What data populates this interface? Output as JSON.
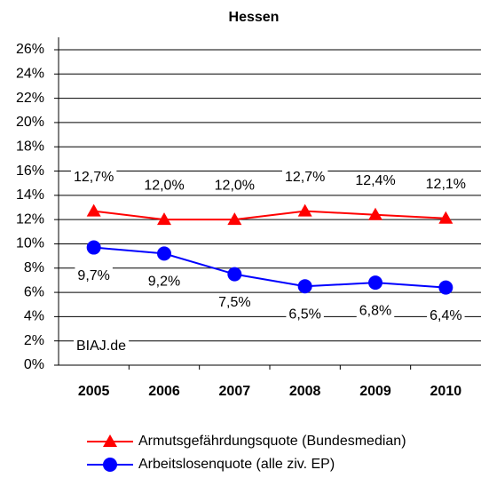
{
  "chart_data": {
    "type": "line",
    "title": "Hessen",
    "categories": [
      "2005",
      "2006",
      "2007",
      "2008",
      "2009",
      "2010"
    ],
    "series": [
      {
        "name": "Armutsgefährdungsquote (Bundesmedian)",
        "color": "#ff0000",
        "marker": "triangle",
        "values": [
          12.7,
          12.0,
          12.0,
          12.7,
          12.4,
          12.1
        ],
        "value_labels": [
          "12,7%",
          "12,0%",
          "12,0%",
          "12,7%",
          "12,4%",
          "12,1%"
        ]
      },
      {
        "name": "Arbeitslosenquote (alle ziv. EP)",
        "color": "#0000ff",
        "marker": "circle",
        "values": [
          9.7,
          9.2,
          7.5,
          6.5,
          6.8,
          6.4
        ],
        "value_labels": [
          "9,7%",
          "9,2%",
          "7,5%",
          "6,5%",
          "6,8%",
          "6,4%"
        ]
      }
    ],
    "ylim": [
      0,
      26
    ],
    "yticks": [
      {
        "value": 0,
        "label": "0%"
      },
      {
        "value": 2,
        "label": "2%"
      },
      {
        "value": 4,
        "label": "4%"
      },
      {
        "value": 6,
        "label": "6%"
      },
      {
        "value": 8,
        "label": "8%"
      },
      {
        "value": 10,
        "label": "10%"
      },
      {
        "value": 12,
        "label": "12%"
      },
      {
        "value": 14,
        "label": "14%"
      },
      {
        "value": 16,
        "label": "16%"
      },
      {
        "value": 18,
        "label": "18%"
      },
      {
        "value": 20,
        "label": "20%"
      },
      {
        "value": 22,
        "label": "22%"
      },
      {
        "value": 24,
        "label": "24%"
      },
      {
        "value": 26,
        "label": "26%"
      }
    ],
    "grid": true,
    "annotation": "BIAJ.de"
  }
}
